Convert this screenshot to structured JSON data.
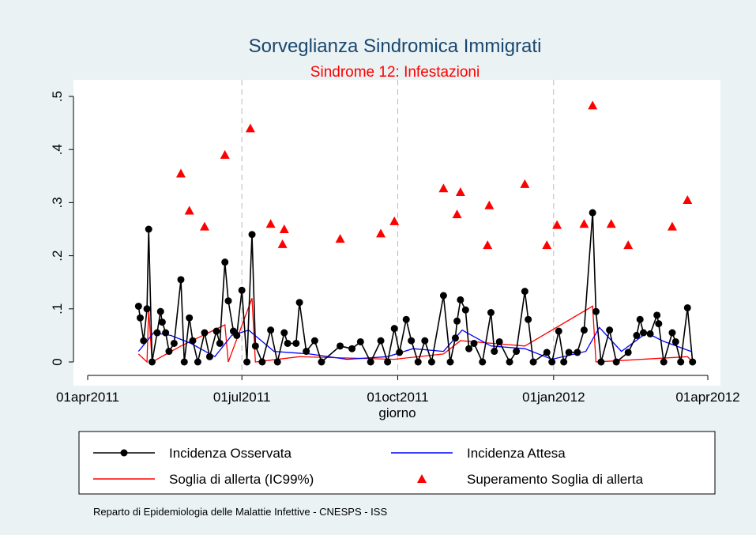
{
  "chart_data": {
    "type": "line",
    "title": "Sorveglianza Sindromica Immigrati",
    "subtitle": "Sindrome 12: Infestazioni",
    "xlabel": "giorno",
    "note": "Reparto di Epidemiologia delle Malattie Infettive - CNESPS - ISS",
    "xlim": [
      "2011-04-01",
      "2012-04-01"
    ],
    "xticks": [
      {
        "value": "2011-04-01",
        "label": "01apr2011"
      },
      {
        "value": "2011-07-01",
        "label": "01jul2011"
      },
      {
        "value": "2011-10-01",
        "label": "01oct2011"
      },
      {
        "value": "2012-01-01",
        "label": "01jan2012"
      },
      {
        "value": "2012-04-01",
        "label": "01apr2012"
      }
    ],
    "ylim": [
      0,
      0.5
    ],
    "yticks": [
      0,
      {
        "value": 0.1,
        "label": ".1"
      },
      {
        "value": 0.2,
        "label": ".2"
      },
      {
        "value": 0.3,
        "label": ".3"
      },
      {
        "value": 0.4,
        "label": ".4"
      },
      {
        "value": 0.5,
        "label": ".5"
      }
    ],
    "series": [
      {
        "name": "Incidenza Osservata",
        "color": "#000000",
        "line": true,
        "marker": "circle",
        "x": [
          "2011-05-01",
          "2011-05-02",
          "2011-05-04",
          "2011-05-06",
          "2011-05-07",
          "2011-05-09",
          "2011-05-12",
          "2011-05-14",
          "2011-05-15",
          "2011-05-17",
          "2011-05-19",
          "2011-05-22",
          "2011-05-26",
          "2011-05-28",
          "2011-05-31",
          "2011-06-02",
          "2011-06-05",
          "2011-06-09",
          "2011-06-12",
          "2011-06-16",
          "2011-06-18",
          "2011-06-21",
          "2011-06-23",
          "2011-06-26",
          "2011-06-28",
          "2011-07-01",
          "2011-07-04",
          "2011-07-07",
          "2011-07-09",
          "2011-07-13",
          "2011-07-18",
          "2011-07-22",
          "2011-07-26",
          "2011-07-28",
          "2011-08-02",
          "2011-08-04",
          "2011-08-08",
          "2011-08-13",
          "2011-08-17",
          "2011-08-28",
          "2011-09-04",
          "2011-09-09",
          "2011-09-15",
          "2011-09-21",
          "2011-09-25",
          "2011-09-29",
          "2011-10-02",
          "2011-10-06",
          "2011-10-09",
          "2011-10-13",
          "2011-10-17",
          "2011-10-21",
          "2011-10-28",
          "2011-11-01",
          "2011-11-04",
          "2011-11-05",
          "2011-11-07",
          "2011-11-10",
          "2011-11-12",
          "2011-11-15",
          "2011-11-20",
          "2011-11-25",
          "2011-11-27",
          "2011-11-30",
          "2011-12-06",
          "2011-12-10",
          "2011-12-15",
          "2011-12-17",
          "2011-12-20",
          "2011-12-28",
          "2011-12-31",
          "2012-01-04",
          "2012-01-07",
          "2012-01-10",
          "2012-01-15",
          "2012-01-19",
          "2012-01-24",
          "2012-01-26",
          "2012-01-29",
          "2012-02-03",
          "2012-02-07",
          "2012-02-14",
          "2012-02-19",
          "2012-02-21",
          "2012-02-23",
          "2012-02-27",
          "2012-03-02",
          "2012-03-03",
          "2012-03-06",
          "2012-03-11",
          "2012-03-13",
          "2012-03-16",
          "2012-03-20",
          "2012-03-23"
        ],
        "values": [
          0.105,
          0.083,
          0.04,
          0.1,
          0.25,
          0,
          0.055,
          0.095,
          0.075,
          0.055,
          0.02,
          0.035,
          0.155,
          0,
          0.083,
          0.04,
          0,
          0.055,
          0.01,
          0.058,
          0.035,
          0.188,
          0.115,
          0.058,
          0.05,
          0.135,
          0,
          0.24,
          0.03,
          0,
          0.06,
          0,
          0.055,
          0.035,
          0.035,
          0.112,
          0.02,
          0.04,
          0,
          0.03,
          0.025,
          0.038,
          0,
          0.04,
          0,
          0.063,
          0.018,
          0.08,
          0.04,
          0,
          0.04,
          0,
          0.125,
          0,
          0.045,
          0.077,
          0.117,
          0.098,
          0.025,
          0.035,
          0,
          0.093,
          0.02,
          0.038,
          0,
          0.02,
          0.133,
          0.08,
          0,
          0.018,
          0,
          0.058,
          0,
          0.018,
          0.018,
          0.06,
          0.281,
          0.095,
          0,
          0.06,
          0,
          0.018,
          0.05,
          0.08,
          0.055,
          0.053,
          0.088,
          0.072,
          0,
          0.055,
          0.038,
          0,
          0.102,
          0
        ]
      },
      {
        "name": "Incidenza Attesa",
        "color": "#0000ff",
        "line": true,
        "marker": "none",
        "x": [
          "2011-05-01",
          "2011-05-10",
          "2011-05-20",
          "2011-06-01",
          "2011-06-15",
          "2011-06-25",
          "2011-07-05",
          "2011-07-20",
          "2011-08-10",
          "2011-09-01",
          "2011-09-25",
          "2011-10-10",
          "2011-10-28",
          "2011-11-08",
          "2011-11-25",
          "2011-12-15",
          "2011-12-31",
          "2012-01-20",
          "2012-01-28",
          "2012-02-10",
          "2012-02-25",
          "2012-03-05",
          "2012-03-22"
        ],
        "values": [
          0.02,
          0.055,
          0.05,
          0.035,
          0.01,
          0.05,
          0.06,
          0.02,
          0.015,
          0.005,
          0.01,
          0.025,
          0.02,
          0.06,
          0.03,
          0.025,
          0.005,
          0.02,
          0.065,
          0.02,
          0.055,
          0.04,
          0.02
        ]
      },
      {
        "name": "Soglia di allerta (IC99%)",
        "color": "#ff0000",
        "line": true,
        "marker": "none",
        "x": [
          "2011-05-01",
          "2011-05-06",
          "2011-05-07",
          "2011-05-09",
          "2011-05-26",
          "2011-06-21",
          "2011-06-23",
          "2011-07-07",
          "2011-07-09",
          "2011-08-04",
          "2011-09-29",
          "2011-10-28",
          "2011-11-07",
          "2011-12-15",
          "2012-01-24",
          "2012-01-26",
          "2012-03-20",
          "2012-03-23"
        ],
        "values": [
          0.015,
          0,
          0.1,
          0,
          0.03,
          0.07,
          0,
          0.12,
          0,
          0.01,
          0.005,
          0.015,
          0.04,
          0.03,
          0.105,
          0,
          0.01,
          0
        ]
      },
      {
        "name": "Superamento Soglia di allerta",
        "color": "#ff0000",
        "line": false,
        "marker": "triangle",
        "x": [
          "2011-05-26",
          "2011-05-31",
          "2011-06-09",
          "2011-06-21",
          "2011-07-06",
          "2011-07-18",
          "2011-07-26",
          "2011-07-25",
          "2011-08-28",
          "2011-09-21",
          "2011-09-29",
          "2011-10-28",
          "2011-11-05",
          "2011-11-07",
          "2011-11-24",
          "2011-11-23",
          "2011-12-15",
          "2011-12-28",
          "2012-01-03",
          "2012-01-19",
          "2012-01-24",
          "2012-02-04",
          "2012-02-14",
          "2012-03-11",
          "2012-03-20"
        ],
        "values": [
          0.355,
          0.285,
          0.255,
          0.39,
          0.44,
          0.26,
          0.25,
          0.222,
          0.232,
          0.242,
          0.265,
          0.327,
          0.278,
          0.32,
          0.295,
          0.22,
          0.335,
          0.22,
          0.258,
          0.26,
          0.483,
          0.26,
          0.22,
          0.255,
          0.305
        ]
      }
    ]
  }
}
